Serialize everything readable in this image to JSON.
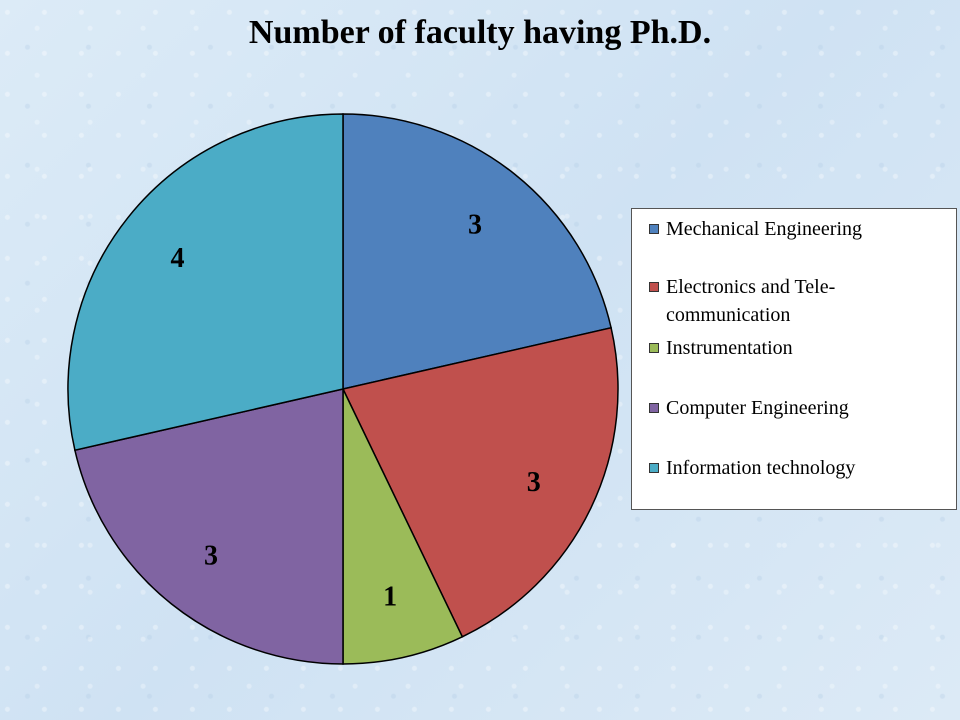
{
  "chart_data": {
    "type": "pie",
    "title": "Number of faculty having Ph.D.",
    "categories": [
      "Mechanical Engineering",
      "Electronics and Tele-communication",
      "Instrumentation",
      "Computer Engineering",
      "Information technology"
    ],
    "values": [
      3,
      3,
      1,
      3,
      4
    ],
    "data_labels": [
      "3",
      "3",
      "1",
      "3",
      "4"
    ],
    "colors": [
      "#4f81bd",
      "#c0504d",
      "#9bbb59",
      "#8064a2",
      "#4bacc6"
    ],
    "legend": {
      "position": "right",
      "lines": [
        [
          "Mechanical Engineering"
        ],
        [
          "Electronics and Tele-",
          "communication"
        ],
        [
          "Instrumentation"
        ],
        [
          "Computer Engineering"
        ],
        [
          "Information technology"
        ]
      ]
    }
  }
}
